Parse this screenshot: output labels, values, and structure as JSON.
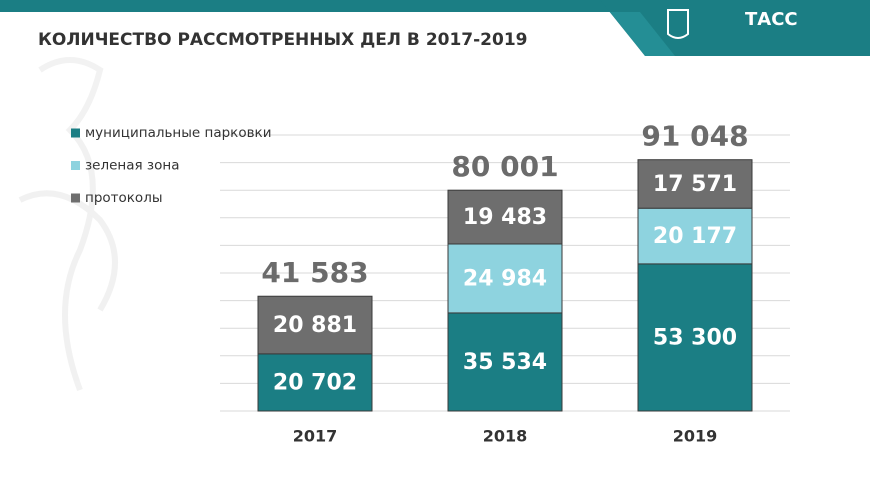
{
  "chart_data": {
    "type": "stacked-bar",
    "title": "КОЛИЧЕСТВО РАССМОТРЕННЫХ ДЕЛ В 2017-2019",
    "logo_text": "ТАСС",
    "categories": [
      "2017",
      "2018",
      "2019"
    ],
    "series": [
      {
        "name": "муниципальные парковки",
        "color": "#1b7e84",
        "values": [
          20702,
          35534,
          53300
        ],
        "value_labels": [
          "20 702",
          "35 534",
          "53 300"
        ]
      },
      {
        "name": "зеленая зона",
        "color": "#8ed3df",
        "values": [
          null,
          24984,
          20177
        ],
        "value_labels": [
          null,
          "24 984",
          "20 177"
        ]
      },
      {
        "name": "протоколы",
        "color": "#6e6e6e",
        "values": [
          20881,
          19483,
          17571
        ],
        "value_labels": [
          "20 881",
          "19 483",
          "17 571"
        ]
      }
    ],
    "totals": [
      41583,
      80001,
      91048
    ],
    "total_labels": [
      "41 583",
      "80 001",
      "91 048"
    ],
    "ylim": [
      0,
      100000
    ],
    "gridlines": [
      0,
      10000,
      20000,
      30000,
      40000,
      50000,
      60000,
      70000,
      80000,
      90000,
      100000
    ],
    "grid": true,
    "legend": "left"
  }
}
